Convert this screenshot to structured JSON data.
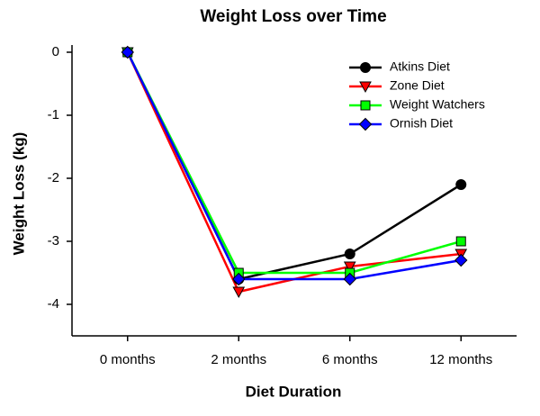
{
  "chart_data": {
    "type": "line",
    "title": "Weight Loss over Time",
    "x_label": "Diet Duration",
    "y_label": "Weight Loss (kg)",
    "categories": [
      "0 months",
      "2 months",
      "6 months",
      "12 months"
    ],
    "series": [
      {
        "name": "Atkins Diet",
        "color": "#000000",
        "marker": "circle",
        "values": [
          0,
          -3.6,
          -3.2,
          -2.1
        ]
      },
      {
        "name": "Zone Diet",
        "color": "#ff0000",
        "marker": "triangle-down",
        "values": [
          0,
          -3.8,
          -3.4,
          -3.2
        ]
      },
      {
        "name": "Weight Watchers",
        "color": "#00ff00",
        "marker": "square",
        "values": [
          0,
          -3.5,
          -3.5,
          -3.0
        ]
      },
      {
        "name": "Ornish Diet",
        "color": "#0000ff",
        "marker": "diamond",
        "values": [
          0,
          -3.6,
          -3.6,
          -3.3
        ]
      }
    ],
    "ylim": [
      -4.5,
      0
    ],
    "yticks": [
      0,
      -1,
      -2,
      -3,
      -4
    ],
    "grid": false,
    "legend": "upper right"
  }
}
